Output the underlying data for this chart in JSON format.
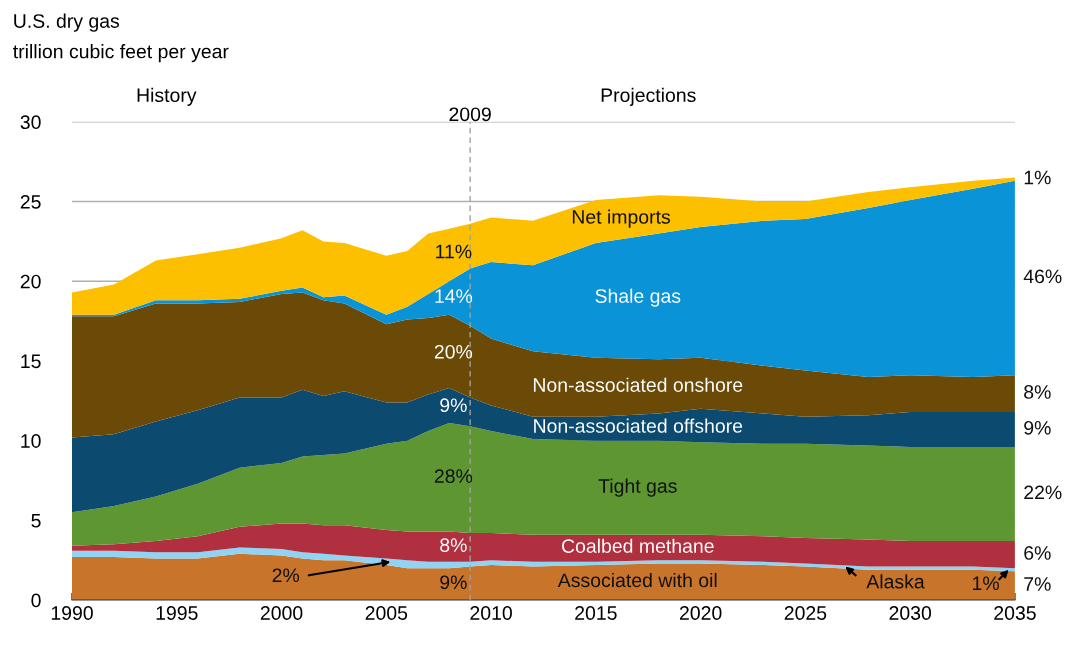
{
  "chart_data": {
    "type": "area",
    "stacked": true,
    "title": "U.S. dry gas",
    "subtitle": "trillion cubic feet per year",
    "x": [
      1990,
      1992,
      1994,
      1996,
      1998,
      2000,
      2001,
      2002,
      2003,
      2005,
      2006,
      2007,
      2008,
      2009,
      2010,
      2012,
      2015,
      2018,
      2020,
      2023,
      2025,
      2028,
      2030,
      2033,
      2035
    ],
    "series": [
      {
        "name": "Associated with oil",
        "color": "#c8742a",
        "values": [
          2.7,
          2.7,
          2.6,
          2.6,
          2.9,
          2.8,
          2.6,
          2.5,
          2.5,
          2.2,
          2.0,
          2.0,
          2.0,
          2.1,
          2.2,
          2.1,
          2.2,
          2.3,
          2.3,
          2.2,
          2.1,
          1.9,
          1.9,
          1.9,
          1.8
        ]
      },
      {
        "color": "#8fd3f5",
        "values": [
          0.4,
          0.4,
          0.4,
          0.4,
          0.4,
          0.4,
          0.4,
          0.4,
          0.3,
          0.4,
          0.5,
          0.4,
          0.4,
          0.3,
          0.3,
          0.3,
          0.2,
          0.2,
          0.2,
          0.2,
          0.2,
          0.2,
          0.2,
          0.2,
          0.2
        ]
      },
      {
        "name": "Coalbed methane",
        "color": "#b0303f",
        "values": [
          0.3,
          0.4,
          0.7,
          1.0,
          1.3,
          1.6,
          1.8,
          1.8,
          1.9,
          1.8,
          1.8,
          1.9,
          1.9,
          1.8,
          1.7,
          1.7,
          1.7,
          1.6,
          1.6,
          1.6,
          1.6,
          1.7,
          1.6,
          1.6,
          1.7
        ]
      },
      {
        "name": "Tight gas",
        "color": "#5e9732",
        "values": [
          2.1,
          2.4,
          2.8,
          3.3,
          3.7,
          3.8,
          4.2,
          4.4,
          4.5,
          5.4,
          5.7,
          6.3,
          6.8,
          6.7,
          6.4,
          6.0,
          5.9,
          5.9,
          5.8,
          5.8,
          5.9,
          5.9,
          5.9,
          5.9,
          5.9
        ]
      },
      {
        "name": "Non-associated offshore",
        "color": "#0c4a70",
        "values": [
          4.7,
          4.5,
          4.7,
          4.6,
          4.4,
          4.1,
          4.2,
          3.7,
          3.9,
          2.6,
          2.4,
          2.3,
          2.2,
          1.8,
          1.6,
          1.4,
          1.5,
          1.7,
          2.1,
          1.9,
          1.7,
          1.9,
          2.2,
          2.2,
          2.2
        ]
      },
      {
        "name": "Non-associated onshore",
        "color": "#6b4a07",
        "values": [
          7.6,
          7.4,
          7.4,
          6.7,
          6.0,
          6.5,
          6.1,
          6.0,
          5.5,
          4.9,
          5.2,
          4.8,
          4.6,
          4.5,
          4.2,
          4.1,
          3.7,
          3.4,
          3.2,
          3.0,
          2.9,
          2.4,
          2.3,
          2.2,
          2.3
        ]
      },
      {
        "name": "Shale gas",
        "color": "#0a93d6",
        "values": [
          0.1,
          0.1,
          0.2,
          0.2,
          0.2,
          0.2,
          0.3,
          0.2,
          0.5,
          0.6,
          0.8,
          1.5,
          2.1,
          3.6,
          4.8,
          5.4,
          7.2,
          7.9,
          8.2,
          9.1,
          9.5,
          10.6,
          11.0,
          11.8,
          12.2
        ]
      },
      {
        "name": "Net imports",
        "color": "#fdc000",
        "values": [
          1.4,
          1.9,
          2.5,
          2.9,
          3.2,
          3.3,
          3.6,
          3.5,
          3.3,
          3.7,
          3.5,
          3.8,
          3.3,
          2.8,
          2.8,
          2.8,
          2.7,
          2.4,
          1.9,
          1.2,
          1.1,
          1.0,
          0.8,
          0.5,
          0.2
        ]
      }
    ],
    "xlim": [
      1990,
      2035
    ],
    "xticks": [
      1990,
      1995,
      2000,
      2005,
      2010,
      2015,
      2020,
      2025,
      2030,
      2035
    ],
    "ylim": [
      0,
      30
    ],
    "yticks": [
      0,
      5,
      10,
      15,
      20,
      25,
      30
    ],
    "grid": "y",
    "legend": false,
    "ref_lines": [
      {
        "axis": "x",
        "value": 2009,
        "label": "2009",
        "color": "#a0a0a0",
        "line_style": "dashed"
      }
    ],
    "annotations": [
      "History",
      "Projections",
      "11%",
      "14%",
      "20%",
      "9%",
      "28%",
      "8%",
      "9%",
      {
        "text": "2%",
        "x": 2005.2,
        "y": 2.4
      },
      "1%",
      "46%",
      "8%",
      "9%",
      "22%",
      "6%",
      "7%",
      {
        "text": "1%",
        "x": 2034.7,
        "y": 1.9
      },
      {
        "text": "Alaska",
        "x": 2026.9,
        "y": 2.1
      }
    ]
  }
}
